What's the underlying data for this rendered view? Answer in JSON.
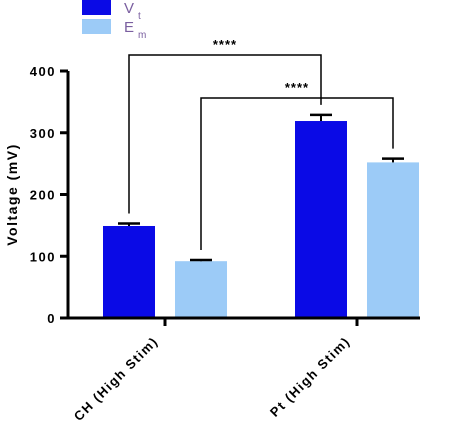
{
  "chart_data": {
    "type": "bar",
    "title": "",
    "xlabel": "",
    "ylabel": "Voltage (mV)",
    "ylim": [
      0,
      400
    ],
    "yticks": [
      0,
      100,
      200,
      300,
      400
    ],
    "categories": [
      "CH (High Stim)",
      "Pt (High Stim)"
    ],
    "series": [
      {
        "name_main": "V",
        "name_sub": "t",
        "color": "#0a0ae6",
        "values": [
          149,
          319
        ],
        "errors": [
          4,
          10
        ]
      },
      {
        "name_main": "E",
        "name_sub": "m",
        "color": "#9ccbf7",
        "values": [
          92,
          252
        ],
        "errors": [
          2,
          6
        ]
      }
    ],
    "significance": [
      {
        "label": "****",
        "from": [
          0,
          0
        ],
        "to": [
          1,
          0
        ]
      },
      {
        "label": "****",
        "from": [
          0,
          1
        ],
        "to": [
          1,
          1
        ]
      }
    ],
    "grid": false,
    "legend_position": "top-left"
  }
}
